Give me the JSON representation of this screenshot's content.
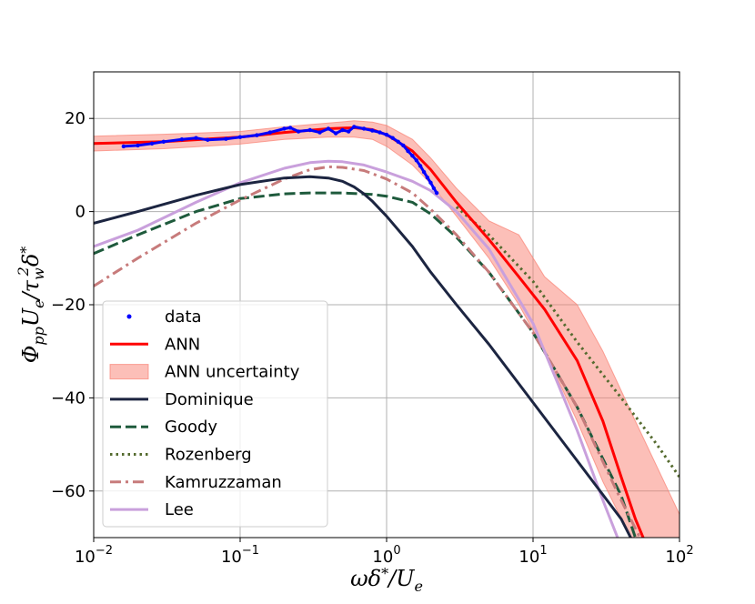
{
  "chart_data": {
    "type": "line",
    "title": "",
    "xscale": "log",
    "xlim": [
      0.01,
      100
    ],
    "ylim": [
      -70,
      30
    ],
    "xlabel": "ωδ*/Ue",
    "ylabel": "ΦppUe/τw²δ*",
    "grid": true,
    "legend_position": "lower-left",
    "xticks": [
      {
        "value": 0.01,
        "base": "10",
        "exp": "−2"
      },
      {
        "value": 0.1,
        "base": "10",
        "exp": "−1"
      },
      {
        "value": 1,
        "base": "10",
        "exp": "0"
      },
      {
        "value": 10,
        "base": "10",
        "exp": "1"
      },
      {
        "value": 100,
        "base": "10",
        "exp": "2"
      }
    ],
    "yticks": [
      {
        "value": 20,
        "label": "20"
      },
      {
        "value": 0,
        "label": "0"
      },
      {
        "value": -20,
        "label": "−20"
      },
      {
        "value": -40,
        "label": "−40"
      },
      {
        "value": -60,
        "label": "−60"
      }
    ],
    "series": [
      {
        "name": "data",
        "kind": "markers",
        "color": "#0000ff",
        "x": [
          0.016,
          0.02,
          0.025,
          0.03,
          0.04,
          0.05,
          0.06,
          0.08,
          0.1,
          0.13,
          0.16,
          0.2,
          0.22,
          0.25,
          0.3,
          0.35,
          0.4,
          0.45,
          0.5,
          0.55,
          0.6,
          0.7,
          0.8,
          0.9,
          1.0,
          1.1,
          1.2,
          1.3,
          1.4,
          1.5,
          1.6,
          1.7,
          1.8,
          1.9,
          2.0,
          2.1,
          2.2
        ],
        "y": [
          14.0,
          14.2,
          14.6,
          15.0,
          15.5,
          15.8,
          15.4,
          15.6,
          16.0,
          16.4,
          17.0,
          17.8,
          18.0,
          17.2,
          17.5,
          17.0,
          17.8,
          16.8,
          17.5,
          17.2,
          18.2,
          17.8,
          17.4,
          17.0,
          16.5,
          15.8,
          15.0,
          14.2,
          13.0,
          12.0,
          11.0,
          9.8,
          8.5,
          7.3,
          6.2,
          5.0,
          4.0
        ]
      },
      {
        "name": "ANN",
        "kind": "line",
        "color": "#ff0000",
        "dash": "solid",
        "x": [
          0.01,
          0.03,
          0.1,
          0.2,
          0.4,
          0.6,
          0.8,
          1.0,
          1.5,
          2.0,
          3.0,
          5.0,
          8.0,
          12.0,
          20.0,
          30.0,
          40.0,
          50.0,
          60.0
        ],
        "y": [
          14.6,
          15.0,
          16.0,
          17.0,
          17.8,
          18.0,
          17.6,
          16.5,
          13.0,
          9.0,
          2.0,
          -6.0,
          -14.0,
          -21.0,
          -32.0,
          -45.0,
          -57.0,
          -66.0,
          -72.0
        ]
      },
      {
        "name": "ANN uncertainty",
        "kind": "band",
        "color": "#fa8072",
        "x": [
          0.01,
          0.03,
          0.1,
          0.2,
          0.4,
          0.6,
          0.8,
          1.0,
          1.5,
          2.0,
          3.0,
          5.0,
          8.0,
          12.0,
          20.0,
          30.0,
          50.0,
          100.0
        ],
        "lower": [
          13.0,
          13.5,
          14.5,
          15.5,
          16.0,
          16.0,
          15.5,
          14.0,
          10.0,
          6.0,
          -1.0,
          -10.0,
          -20.0,
          -30.0,
          -45.0,
          -58.0,
          -72.0,
          -75.0
        ],
        "upper": [
          16.2,
          16.6,
          17.2,
          18.2,
          19.0,
          19.5,
          19.2,
          18.5,
          15.5,
          11.5,
          5.0,
          -2.0,
          -5.0,
          -14.0,
          -20.0,
          -30.0,
          -45.0,
          -65.0
        ]
      },
      {
        "name": "Dominique",
        "kind": "line",
        "color": "#1c2541",
        "dash": "solid",
        "x": [
          0.01,
          0.02,
          0.05,
          0.1,
          0.2,
          0.3,
          0.4,
          0.5,
          0.6,
          0.7,
          0.8,
          1.0,
          1.5,
          2.0,
          3.0,
          5.0,
          10.0,
          20.0,
          40.0,
          50.0
        ],
        "y": [
          -2.5,
          0.0,
          3.5,
          5.8,
          7.2,
          7.5,
          7.2,
          6.5,
          5.3,
          3.8,
          2.2,
          -1.0,
          -7.5,
          -13.0,
          -20.0,
          -28.5,
          -41.0,
          -53.5,
          -66.0,
          -72.0
        ]
      },
      {
        "name": "Goody",
        "kind": "line",
        "color": "#1e5a3c",
        "dash": "dashed",
        "x": [
          0.01,
          0.02,
          0.05,
          0.1,
          0.2,
          0.3,
          0.5,
          0.8,
          1.0,
          1.5,
          2.0,
          3.0,
          5.0,
          10.0,
          20.0,
          40.0,
          50.0
        ],
        "y": [
          -9.0,
          -5.0,
          0.0,
          2.8,
          3.8,
          4.0,
          4.0,
          3.7,
          3.3,
          2.0,
          -0.5,
          -5.5,
          -13.0,
          -26.0,
          -42.0,
          -61.0,
          -70.0
        ]
      },
      {
        "name": "Rozenberg",
        "kind": "line",
        "color": "#556b2f",
        "dash": "dotted",
        "x": [
          3.0,
          5.0,
          10.0,
          20.0,
          40.0,
          70.0,
          100.0
        ],
        "y": [
          1.0,
          -5.0,
          -15.0,
          -28.0,
          -40.0,
          -50.0,
          -57.0
        ]
      },
      {
        "name": "Kamruzzaman",
        "kind": "line",
        "color": "#c77b7b",
        "dash": "dashdot",
        "x": [
          0.01,
          0.02,
          0.05,
          0.1,
          0.2,
          0.3,
          0.4,
          0.5,
          0.7,
          1.0,
          1.5,
          2.0,
          3.0,
          5.0,
          10.0,
          20.0,
          40.0,
          60.0
        ],
        "y": [
          -16.0,
          -10.0,
          -2.5,
          2.5,
          7.0,
          9.0,
          9.6,
          9.5,
          8.8,
          7.0,
          4.0,
          0.5,
          -5.0,
          -13.0,
          -26.0,
          -42.0,
          -62.0,
          -73.0
        ]
      },
      {
        "name": "Lee",
        "kind": "line",
        "color": "#c9a0dc",
        "dash": "solid",
        "x": [
          0.01,
          0.02,
          0.05,
          0.1,
          0.2,
          0.3,
          0.4,
          0.5,
          0.7,
          1.0,
          1.5,
          2.0,
          3.0,
          5.0,
          10.0,
          20.0,
          30.0,
          40.0
        ],
        "y": [
          -7.5,
          -4.0,
          2.0,
          6.2,
          9.3,
          10.5,
          10.8,
          10.7,
          10.0,
          8.5,
          6.5,
          4.5,
          0.0,
          -8.0,
          -24.0,
          -47.0,
          -62.0,
          -72.0
        ]
      }
    ]
  }
}
